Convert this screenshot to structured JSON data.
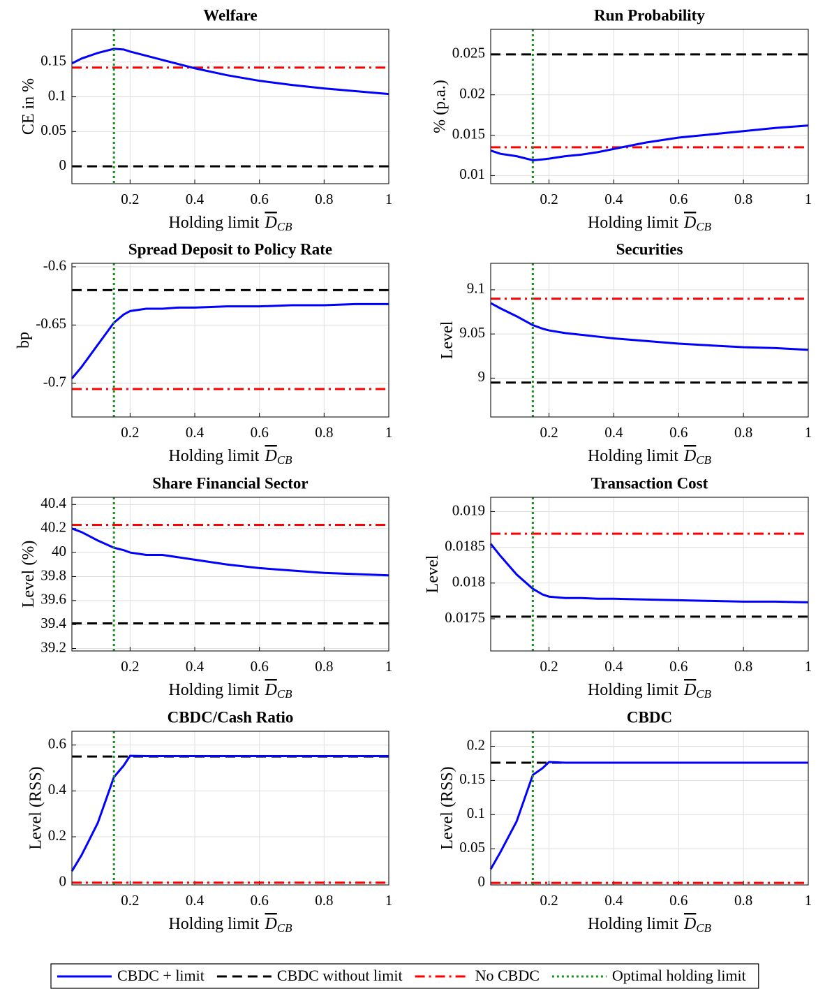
{
  "chart_data": [
    {
      "type": "line",
      "title": "Welfare",
      "ylabel": "CE in %",
      "xlabel": {
        "text": "Holding limit",
        "symbol": "D",
        "subscript": "CB"
      },
      "x": [
        0.02,
        0.05,
        0.1,
        0.15,
        0.18,
        0.2,
        0.25,
        0.3,
        0.35,
        0.4,
        0.5,
        0.6,
        0.7,
        0.8,
        0.9,
        1
      ],
      "series": [
        {
          "values": [
            0.148,
            0.155,
            0.163,
            0.169,
            0.168,
            0.165,
            0.159,
            0.153,
            0.147,
            0.141,
            0.131,
            0.123,
            0.117,
            0.112,
            0.108,
            0.104
          ]
        },
        {
          "value": 0
        },
        {
          "value": 0.142
        }
      ],
      "vline": 0.15,
      "xlim": [
        0.02,
        1
      ],
      "xticks": [
        0.2,
        0.4,
        0.6,
        0.8,
        1
      ],
      "ylim": [
        -0.025,
        0.197
      ],
      "yticks": [
        0,
        0.05,
        0.1,
        0.15
      ],
      "grid": true
    },
    {
      "type": "line",
      "title": "Run Probability",
      "ylabel": "% (p.a.)",
      "xlabel": {
        "text": "Holding limit",
        "symbol": "D",
        "subscript": "CB"
      },
      "x": [
        0.02,
        0.05,
        0.1,
        0.15,
        0.18,
        0.2,
        0.25,
        0.3,
        0.35,
        0.4,
        0.5,
        0.6,
        0.7,
        0.8,
        0.9,
        1
      ],
      "series": [
        {
          "values": [
            0.0131,
            0.0127,
            0.0124,
            0.0119,
            0.012,
            0.0121,
            0.0124,
            0.0126,
            0.0129,
            0.0133,
            0.0141,
            0.0147,
            0.0151,
            0.0155,
            0.0159,
            0.0162
          ]
        },
        {
          "value": 0.025
        },
        {
          "value": 0.0135
        }
      ],
      "vline": 0.15,
      "xlim": [
        0.02,
        1
      ],
      "xticks": [
        0.2,
        0.4,
        0.6,
        0.8,
        1
      ],
      "ylim": [
        0.009,
        0.0281
      ],
      "yticks": [
        0.01,
        0.015,
        0.02,
        0.025
      ],
      "grid": true
    },
    {
      "type": "line",
      "title": "Spread Deposit to Policy Rate",
      "ylabel": "bp",
      "xlabel": {
        "text": "Holding limit",
        "symbol": "D",
        "subscript": "CB"
      },
      "x": [
        0.02,
        0.05,
        0.1,
        0.15,
        0.18,
        0.2,
        0.25,
        0.3,
        0.35,
        0.4,
        0.5,
        0.6,
        0.7,
        0.8,
        0.9,
        1
      ],
      "series": [
        {
          "values": [
            -0.696,
            -0.686,
            -0.667,
            -0.648,
            -0.641,
            -0.638,
            -0.636,
            -0.636,
            -0.635,
            -0.635,
            -0.634,
            -0.634,
            -0.633,
            -0.633,
            -0.632,
            -0.632
          ]
        },
        {
          "value": -0.62
        },
        {
          "value": -0.705
        }
      ],
      "vline": 0.15,
      "xlim": [
        0.02,
        1
      ],
      "xticks": [
        0.2,
        0.4,
        0.6,
        0.8,
        1
      ],
      "ylim": [
        -0.729,
        -0.597
      ],
      "yticks": [
        -0.7,
        -0.65,
        -0.6
      ],
      "grid": true
    },
    {
      "type": "line",
      "title": "Securities",
      "ylabel": "Level",
      "xlabel": {
        "text": "Holding limit",
        "symbol": "D",
        "subscript": "CB"
      },
      "x": [
        0.02,
        0.05,
        0.1,
        0.15,
        0.18,
        0.2,
        0.25,
        0.3,
        0.35,
        0.4,
        0.5,
        0.6,
        0.7,
        0.8,
        0.9,
        1
      ],
      "series": [
        {
          "values": [
            9.085,
            9.079,
            9.07,
            9.06,
            9.056,
            9.054,
            9.051,
            9.049,
            9.047,
            9.045,
            9.042,
            9.039,
            9.037,
            9.035,
            9.034,
            9.032
          ]
        },
        {
          "value": 8.995
        },
        {
          "value": 9.09
        }
      ],
      "vline": 0.15,
      "xlim": [
        0.02,
        1
      ],
      "xticks": [
        0.2,
        0.4,
        0.6,
        0.8,
        1
      ],
      "ylim": [
        8.956,
        9.13
      ],
      "yticks": [
        9,
        9.05,
        9.1
      ],
      "grid": true
    },
    {
      "type": "line",
      "title": "Share Financial Sector",
      "ylabel": "Level (%)",
      "xlabel": {
        "text": "Holding limit",
        "symbol": "D",
        "subscript": "CB"
      },
      "x": [
        0.02,
        0.05,
        0.1,
        0.15,
        0.18,
        0.2,
        0.25,
        0.3,
        0.35,
        0.4,
        0.5,
        0.6,
        0.7,
        0.8,
        0.9,
        1
      ],
      "series": [
        {
          "values": [
            40.2,
            40.17,
            40.1,
            40.04,
            40.02,
            40.0,
            39.98,
            39.98,
            39.96,
            39.94,
            39.9,
            39.87,
            39.85,
            39.83,
            39.82,
            39.81
          ]
        },
        {
          "value": 39.41
        },
        {
          "value": 40.23
        }
      ],
      "vline": 0.15,
      "xlim": [
        0.02,
        1
      ],
      "xticks": [
        0.2,
        0.4,
        0.6,
        0.8,
        1
      ],
      "ylim": [
        39.18,
        40.46
      ],
      "yticks": [
        39.2,
        39.4,
        39.6,
        39.8,
        40,
        40.2,
        40.4
      ],
      "grid": true
    },
    {
      "type": "line",
      "title": "Transaction Cost",
      "ylabel": "Level",
      "xlabel": {
        "text": "Holding limit",
        "symbol": "D",
        "subscript": "CB"
      },
      "x": [
        0.02,
        0.05,
        0.1,
        0.15,
        0.18,
        0.2,
        0.25,
        0.3,
        0.35,
        0.4,
        0.5,
        0.6,
        0.7,
        0.8,
        0.9,
        1
      ],
      "series": [
        {
          "values": [
            0.01855,
            0.01838,
            0.01812,
            0.01792,
            0.01784,
            0.01781,
            0.01779,
            0.01779,
            0.01778,
            0.01778,
            0.01777,
            0.01776,
            0.01775,
            0.01774,
            0.01774,
            0.01773
          ]
        },
        {
          "value": 0.01753
        },
        {
          "value": 0.01869
        }
      ],
      "vline": 0.15,
      "xlim": [
        0.02,
        1
      ],
      "xticks": [
        0.2,
        0.4,
        0.6,
        0.8,
        1
      ],
      "ylim": [
        0.01705,
        0.0192
      ],
      "yticks": [
        0.0175,
        0.018,
        0.0185,
        0.019
      ],
      "grid": true
    },
    {
      "type": "line",
      "title": "CBDC/Cash Ratio",
      "ylabel": "Level (RSS)",
      "xlabel": {
        "text": "Holding limit",
        "symbol": "D",
        "subscript": "CB"
      },
      "x": [
        0.02,
        0.05,
        0.1,
        0.15,
        0.18,
        0.2,
        0.25,
        0.3,
        0.35,
        0.4,
        0.5,
        0.6,
        0.7,
        0.8,
        0.9,
        1
      ],
      "series": [
        {
          "values": [
            0.05,
            0.12,
            0.26,
            0.46,
            0.51,
            0.553,
            0.552,
            0.552,
            0.552,
            0.552,
            0.552,
            0.552,
            0.552,
            0.552,
            0.552,
            0.552
          ]
        },
        {
          "value": 0.55
        },
        {
          "value": 0
        }
      ],
      "vline": 0.15,
      "xlim": [
        0.02,
        1
      ],
      "xticks": [
        0.2,
        0.4,
        0.6,
        0.8,
        1
      ],
      "ylim": [
        -0.01,
        0.66
      ],
      "yticks": [
        0,
        0.2,
        0.4,
        0.6
      ],
      "grid": true
    },
    {
      "type": "line",
      "title": "CBDC",
      "ylabel": "Level (RSS)",
      "xlabel": {
        "text": "Holding limit",
        "symbol": "D",
        "subscript": "CB"
      },
      "x": [
        0.02,
        0.05,
        0.1,
        0.15,
        0.18,
        0.2,
        0.25,
        0.3,
        0.35,
        0.4,
        0.5,
        0.6,
        0.7,
        0.8,
        0.9,
        1
      ],
      "series": [
        {
          "values": [
            0.02,
            0.045,
            0.09,
            0.158,
            0.168,
            0.177,
            0.176,
            0.176,
            0.176,
            0.176,
            0.176,
            0.176,
            0.176,
            0.176,
            0.176,
            0.176
          ]
        },
        {
          "value": 0.176
        },
        {
          "value": 0
        }
      ],
      "vline": 0.15,
      "xlim": [
        0.02,
        1
      ],
      "xticks": [
        0.2,
        0.4,
        0.6,
        0.8,
        1
      ],
      "ylim": [
        -0.003,
        0.222
      ],
      "yticks": [
        0,
        0.05,
        0.1,
        0.15,
        0.2
      ],
      "grid": true
    }
  ],
  "legend": [
    {
      "name": "CBDC + limit",
      "color": "#0000ff",
      "dash": "solid"
    },
    {
      "name": "CBDC without limit",
      "color": "#000000",
      "dash": "dashed"
    },
    {
      "name": "No CBDC",
      "color": "#ff0000",
      "dash": "dashdot"
    },
    {
      "name": "Optimal holding limit",
      "color": "#1e8c1e",
      "dash": "dotted"
    }
  ]
}
